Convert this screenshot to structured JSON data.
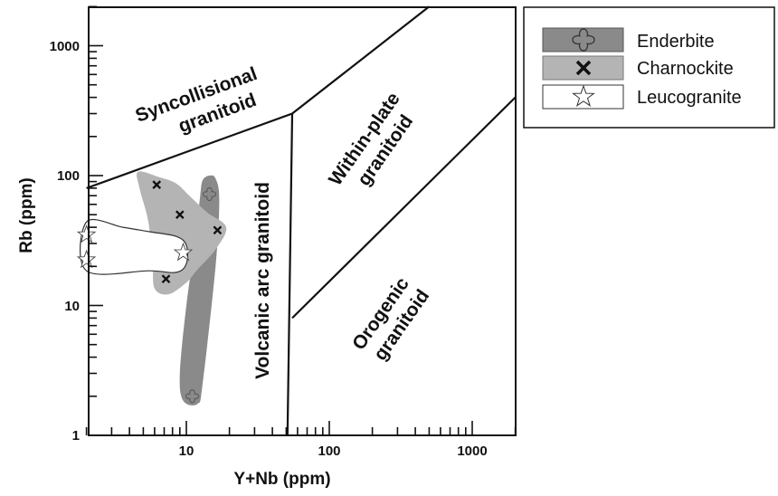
{
  "chart_data": {
    "type": "scatter",
    "title": "",
    "xlabel": "Y+Nb (ppm)",
    "ylabel": "Rb (ppm)",
    "x_scale": "log",
    "y_scale": "log",
    "xlim": [
      2,
      2000
    ],
    "ylim": [
      1,
      2000
    ],
    "x_tick_labels": [
      "10",
      "100",
      "1000"
    ],
    "y_tick_labels": [
      "1",
      "10",
      "100",
      "1000"
    ],
    "grid": false,
    "legend_position": "top-right outside",
    "fields": [
      {
        "name": "syncollisional",
        "label_lines": [
          "Syncollisional",
          "granitoid"
        ]
      },
      {
        "name": "within-plate",
        "label_lines": [
          "Within-plate",
          "granitoid"
        ]
      },
      {
        "name": "volcanic-arc",
        "label_lines": [
          "Volcanic arc granitoid"
        ]
      },
      {
        "name": "orogenic",
        "label_lines": [
          "Orogenic",
          "granitoid"
        ]
      }
    ],
    "boundaries": [
      {
        "name": "syn-upper",
        "points": [
          [
            2,
            80
          ],
          [
            55,
            300
          ]
        ]
      },
      {
        "name": "within-plate-upper",
        "points": [
          [
            55,
            300
          ],
          [
            500,
            2000
          ]
        ]
      },
      {
        "name": "vag-wpg-divide",
        "points": [
          [
            55,
            300
          ],
          [
            51,
            1
          ]
        ]
      },
      {
        "name": "orogenic-divide",
        "points": [
          [
            55,
            8
          ],
          [
            2000,
            400
          ]
        ]
      }
    ],
    "series": [
      {
        "name": "Enderbite",
        "marker": "cross-outline",
        "color": "#8a8a8a",
        "points": [
          [
            14.5,
            72
          ],
          [
            11,
            2
          ]
        ],
        "envelope": [
          [
            13.0,
            92
          ],
          [
            14.5,
            100
          ],
          [
            16.0,
            95
          ],
          [
            17.0,
            65
          ],
          [
            16.0,
            20
          ],
          [
            13.0,
            2.5
          ],
          [
            12.0,
            1.75
          ],
          [
            9.5,
            1.85
          ],
          [
            9.0,
            3.0
          ],
          [
            10.0,
            10
          ],
          [
            11.5,
            30
          ],
          [
            12.5,
            70
          ]
        ]
      },
      {
        "name": "Charnockite",
        "marker": "x",
        "color": "#b4b4b4",
        "points": [
          [
            6.2,
            85
          ],
          [
            9.0,
            50
          ],
          [
            16.5,
            38
          ],
          [
            7.2,
            16
          ]
        ],
        "envelope": [
          [
            4.6,
            107
          ],
          [
            6.5,
            97
          ],
          [
            8.5,
            87
          ],
          [
            10.5,
            70
          ],
          [
            14.0,
            52
          ],
          [
            19.0,
            40
          ],
          [
            16.0,
            27
          ],
          [
            12.0,
            19
          ],
          [
            10.0,
            15
          ],
          [
            7.5,
            12.2
          ],
          [
            6.0,
            13.5
          ],
          [
            5.8,
            22
          ],
          [
            5.4,
            45
          ],
          [
            4.7,
            80
          ]
        ]
      },
      {
        "name": "Leucogranite",
        "marker": "star",
        "color": "#ffffff",
        "points": [
          [
            2.0,
            35
          ],
          [
            2.0,
            22.5
          ],
          [
            9.5,
            25.5
          ]
        ],
        "envelope": [
          [
            2.0,
            44
          ],
          [
            3.6,
            40
          ],
          [
            5.5,
            37
          ],
          [
            8.5,
            34
          ],
          [
            10.0,
            29
          ],
          [
            10.0,
            21
          ],
          [
            8.5,
            18
          ],
          [
            5.5,
            18.5
          ],
          [
            2.0,
            18.5
          ]
        ]
      }
    ]
  },
  "legend": {
    "items": [
      {
        "label": "Enderbite"
      },
      {
        "label": "Charnockite"
      },
      {
        "label": "Leucogranite"
      }
    ]
  }
}
